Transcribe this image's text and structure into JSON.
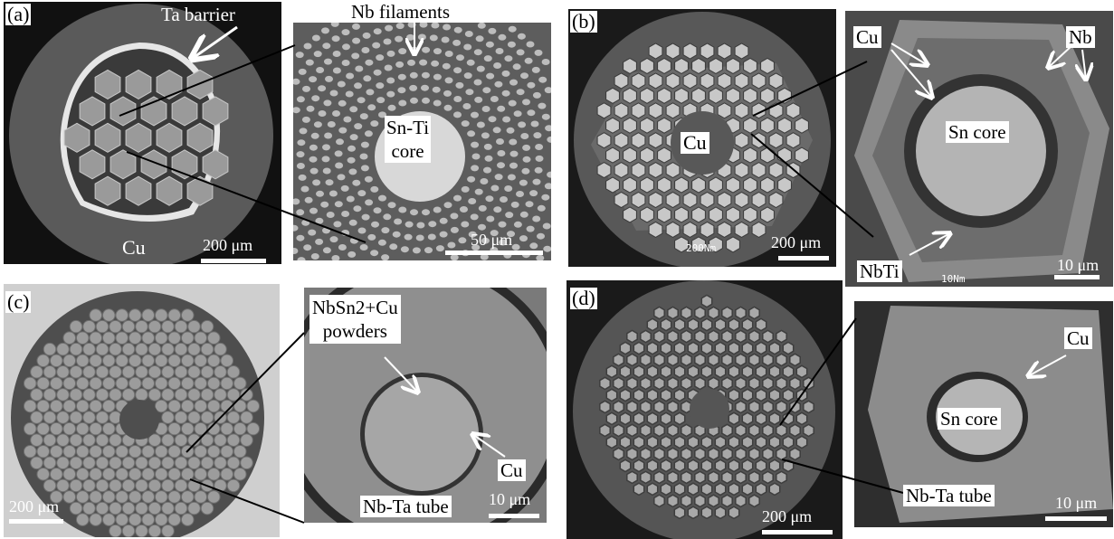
{
  "panels": {
    "a": {
      "label": "(a)",
      "annotations": {
        "ta_barrier": "Ta barrier",
        "cu": "Cu",
        "nb_filaments": "Nb filaments",
        "sn_ti_core": "Sn-Ti\ncore"
      },
      "scale_main": "200 μm",
      "scale_zoom": "50 μm"
    },
    "b": {
      "label": "(b)",
      "annotations": {
        "cu_center": "Cu",
        "cu_zoom": "Cu",
        "nb": "Nb",
        "sn_core": "Sn core",
        "nbti": "NbTi"
      },
      "scale_main": "200 μm",
      "scale_zoom": "10 μm",
      "sem_main": "200Nm",
      "sem_zoom": "10Nm"
    },
    "c": {
      "label": "(c)",
      "annotations": {
        "powders": "NbSn2+Cu\npowders",
        "cu": "Cu",
        "tube": "Nb-Ta tube"
      },
      "scale_main": "200 μm",
      "scale_zoom": "10 μm"
    },
    "d": {
      "label": "(d)",
      "annotations": {
        "cu": "Cu",
        "sn_core": "Sn core",
        "tube": "Nb-Ta tube"
      },
      "scale_main": "200 μm",
      "scale_zoom": "10 μm"
    }
  }
}
